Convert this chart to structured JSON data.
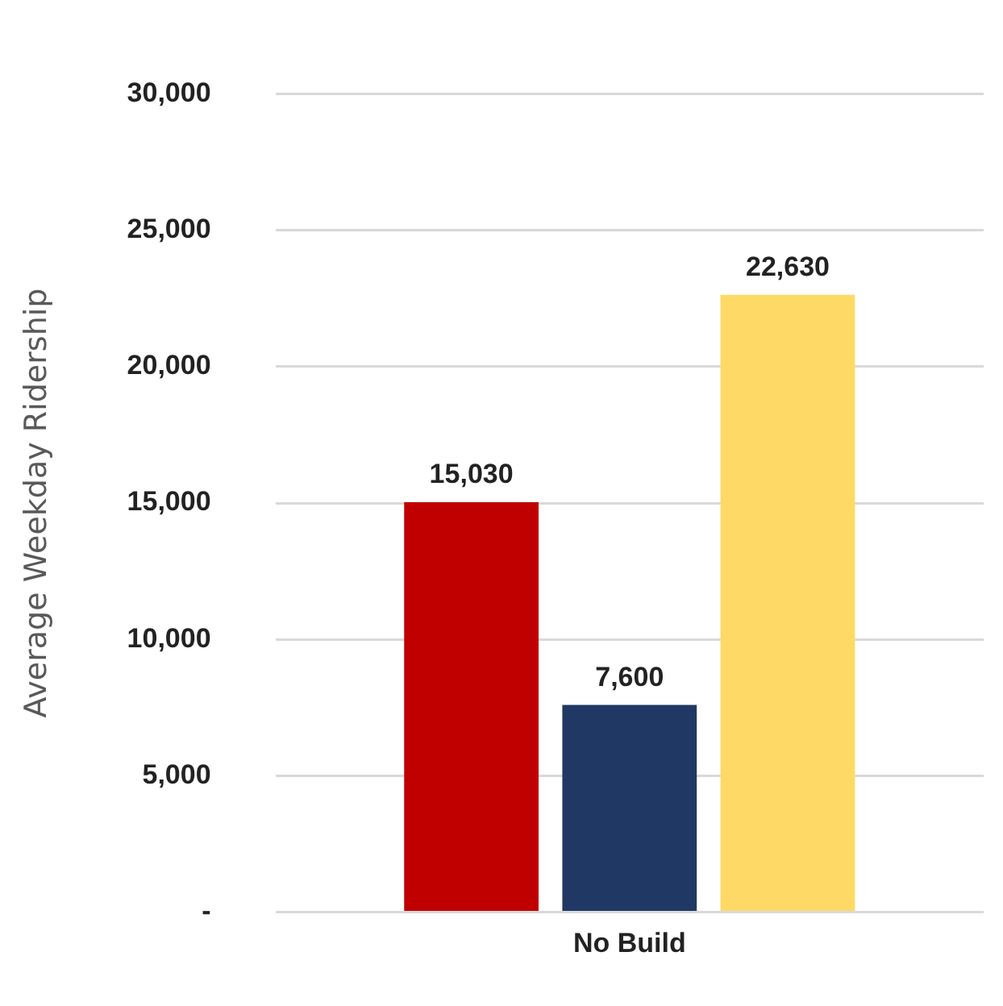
{
  "chart_data": {
    "type": "bar",
    "ylabel": "Average Weekday Ridership",
    "categories": [
      "No Build"
    ],
    "series": [
      {
        "color": "#c00000",
        "values": [
          15030
        ],
        "value_labels": [
          "15,030"
        ]
      },
      {
        "color": "#203864",
        "values": [
          7600
        ],
        "value_labels": [
          "7,600"
        ]
      },
      {
        "color": "#ffd966",
        "values": [
          22630
        ],
        "value_labels": [
          "22,630"
        ]
      }
    ],
    "ylim": [
      0,
      30000
    ],
    "yticks": [
      {
        "value": 0,
        "label": "-"
      },
      {
        "value": 5000,
        "label": "5,000"
      },
      {
        "value": 10000,
        "label": "10,000"
      },
      {
        "value": 15000,
        "label": "15,000"
      },
      {
        "value": 20000,
        "label": "20,000"
      },
      {
        "value": 25000,
        "label": "25,000"
      },
      {
        "value": 30000,
        "label": "30,000"
      }
    ],
    "grid": "y",
    "legend": false
  }
}
